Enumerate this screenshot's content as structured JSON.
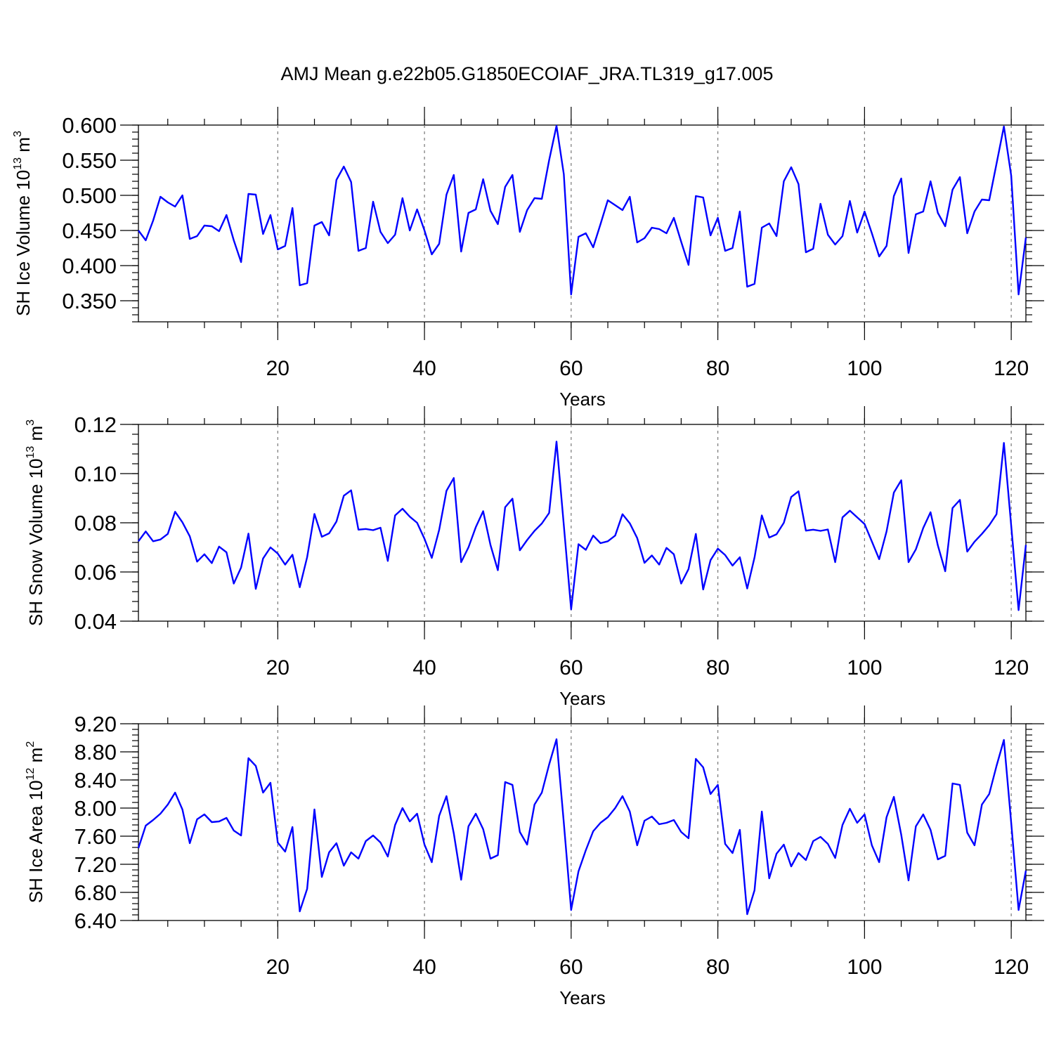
{
  "title": "AMJ Mean g.e22b05.G1850ECOIAF_JRA.TL319_g17.005",
  "series_color": "#0000ff",
  "chart_data": [
    {
      "type": "line",
      "title": "AMJ Mean g.e22b05.G1850ECOIAF_JRA.TL319_g17.005",
      "xlabel": "Years",
      "ylabel_main": "SH Ice Volume 10",
      "ylabel_sup": "13",
      "ylabel_unit": " m",
      "ylabel_unit_sup": "3",
      "xlim": [
        1,
        122
      ],
      "ylim": [
        0.32,
        0.6
      ],
      "xticks": [
        20,
        40,
        60,
        80,
        100,
        120
      ],
      "xtick_labels": [
        "20",
        "40",
        "60",
        "80",
        "100",
        "120"
      ],
      "yticks": [
        0.35,
        0.4,
        0.45,
        0.5,
        0.55,
        0.6
      ],
      "ytick_labels": [
        "0.350",
        "0.400",
        "0.450",
        "0.500",
        "0.550",
        "0.600"
      ],
      "grid": "vertical dashed at major x ticks",
      "x_start": 1,
      "values": [
        0.45,
        0.436,
        0.464,
        0.498,
        0.49,
        0.484,
        0.5,
        0.438,
        0.442,
        0.457,
        0.456,
        0.449,
        0.472,
        0.436,
        0.405,
        0.502,
        0.501,
        0.445,
        0.472,
        0.423,
        0.428,
        0.482,
        0.372,
        0.375,
        0.457,
        0.462,
        0.443,
        0.522,
        0.541,
        0.519,
        0.421,
        0.425,
        0.491,
        0.448,
        0.432,
        0.444,
        0.496,
        0.45,
        0.48,
        0.45,
        0.416,
        0.431,
        0.501,
        0.529,
        0.42,
        0.475,
        0.48,
        0.523,
        0.478,
        0.459,
        0.512,
        0.529,
        0.448,
        0.479,
        0.496,
        0.495,
        0.55,
        0.599,
        0.53,
        0.359,
        0.441,
        0.446,
        0.426,
        0.459,
        0.493,
        0.486,
        0.479,
        0.498,
        0.433,
        0.439,
        0.454,
        0.452,
        0.446,
        0.468,
        0.434,
        0.401,
        0.499,
        0.497,
        0.443,
        0.468,
        0.421,
        0.425,
        0.477,
        0.37,
        0.374,
        0.454,
        0.46,
        0.442,
        0.52,
        0.54,
        0.516,
        0.419,
        0.424,
        0.488,
        0.444,
        0.43,
        0.442,
        0.492,
        0.447,
        0.477,
        0.446,
        0.413,
        0.428,
        0.499,
        0.524,
        0.418,
        0.473,
        0.477,
        0.52,
        0.475,
        0.456,
        0.508,
        0.526,
        0.446,
        0.477,
        0.494,
        0.493,
        0.545,
        0.598,
        0.528,
        0.359,
        0.44
      ]
    },
    {
      "type": "line",
      "xlabel": "Years",
      "ylabel_main": "SH Snow Volume 10",
      "ylabel_sup": "13",
      "ylabel_unit": " m",
      "ylabel_unit_sup": "3",
      "xlim": [
        1,
        122
      ],
      "ylim": [
        0.04,
        0.12
      ],
      "xticks": [
        20,
        40,
        60,
        80,
        100,
        120
      ],
      "xtick_labels": [
        "20",
        "40",
        "60",
        "80",
        "100",
        "120"
      ],
      "yticks": [
        0.04,
        0.06,
        0.08,
        0.1,
        0.12
      ],
      "ytick_labels": [
        "0.04",
        "0.06",
        "0.08",
        "0.10",
        "0.12"
      ],
      "grid": "vertical dashed at major x ticks",
      "x_start": 1,
      "values": [
        0.0725,
        0.0765,
        0.0725,
        0.0732,
        0.0755,
        0.0845,
        0.0802,
        0.0745,
        0.0642,
        0.0672,
        0.0636,
        0.0703,
        0.068,
        0.0553,
        0.0618,
        0.0756,
        0.0531,
        0.0655,
        0.07,
        0.0675,
        0.063,
        0.067,
        0.0538,
        0.066,
        0.0836,
        0.0743,
        0.0757,
        0.0805,
        0.091,
        0.0932,
        0.0772,
        0.0775,
        0.077,
        0.078,
        0.0645,
        0.083,
        0.0857,
        0.0825,
        0.08,
        0.0735,
        0.0657,
        0.0771,
        0.093,
        0.0982,
        0.064,
        0.07,
        0.0782,
        0.0847,
        0.071,
        0.0607,
        0.0863,
        0.0898,
        0.0688,
        0.073,
        0.0767,
        0.0797,
        0.084,
        0.113,
        0.079,
        0.0448,
        0.0713,
        0.069,
        0.0748,
        0.0717,
        0.0725,
        0.0748,
        0.0835,
        0.0798,
        0.0738,
        0.0637,
        0.0667,
        0.063,
        0.0698,
        0.0672,
        0.0553,
        0.0612,
        0.0755,
        0.0529,
        0.0648,
        0.0695,
        0.0669,
        0.0626,
        0.066,
        0.0533,
        0.0659,
        0.083,
        0.074,
        0.0753,
        0.08,
        0.0905,
        0.0928,
        0.0768,
        0.0772,
        0.0767,
        0.0773,
        0.064,
        0.0822,
        0.0849,
        0.0822,
        0.0795,
        0.0724,
        0.0652,
        0.0765,
        0.0923,
        0.0973,
        0.064,
        0.0692,
        0.0779,
        0.0843,
        0.0708,
        0.0603,
        0.086,
        0.0893,
        0.0683,
        0.0723,
        0.0755,
        0.079,
        0.0835,
        0.1125,
        0.0788,
        0.0445,
        0.071
      ]
    },
    {
      "type": "line",
      "xlabel": "Years",
      "ylabel_main": "SH Ice Area 10",
      "ylabel_sup": "12",
      "ylabel_unit": " m",
      "ylabel_unit_sup": "2",
      "xlim": [
        1,
        122
      ],
      "ylim": [
        6.4,
        9.2
      ],
      "xticks": [
        20,
        40,
        60,
        80,
        100,
        120
      ],
      "xtick_labels": [
        "20",
        "40",
        "60",
        "80",
        "100",
        "120"
      ],
      "yticks": [
        6.4,
        6.8,
        7.2,
        7.6,
        8.0,
        8.4,
        8.8,
        9.2
      ],
      "ytick_labels": [
        "6.40",
        "6.80",
        "7.20",
        "7.60",
        "8.00",
        "8.40",
        "8.80",
        "9.20"
      ],
      "grid": "vertical dashed at major x ticks",
      "x_start": 1,
      "values": [
        7.43,
        7.75,
        7.83,
        7.92,
        8.05,
        8.22,
        7.98,
        7.5,
        7.84,
        7.91,
        7.8,
        7.81,
        7.86,
        7.68,
        7.61,
        8.71,
        8.6,
        8.22,
        8.36,
        7.51,
        7.38,
        7.73,
        6.53,
        6.85,
        7.98,
        7.02,
        7.37,
        7.5,
        7.18,
        7.37,
        7.28,
        7.53,
        7.61,
        7.51,
        7.31,
        7.76,
        8.0,
        7.81,
        7.92,
        7.48,
        7.23,
        7.89,
        8.17,
        7.64,
        6.98,
        7.74,
        7.92,
        7.7,
        7.28,
        7.33,
        8.37,
        8.33,
        7.66,
        7.48,
        8.05,
        8.22,
        8.62,
        8.98,
        7.79,
        6.55,
        7.1,
        7.4,
        7.67,
        7.79,
        7.87,
        8.0,
        8.17,
        7.95,
        7.47,
        7.82,
        7.88,
        7.77,
        7.79,
        7.83,
        7.66,
        7.57,
        8.7,
        8.58,
        8.2,
        8.33,
        7.49,
        7.36,
        7.69,
        6.49,
        6.83,
        7.95,
        7.0,
        7.35,
        7.48,
        7.17,
        7.36,
        7.26,
        7.53,
        7.59,
        7.49,
        7.29,
        7.76,
        7.99,
        7.79,
        7.91,
        7.47,
        7.23,
        7.87,
        8.16,
        7.62,
        6.97,
        7.74,
        7.91,
        7.69,
        7.27,
        7.32,
        8.35,
        8.33,
        7.65,
        7.47,
        8.05,
        8.2,
        8.6,
        8.97,
        7.79,
        6.55,
        7.11
      ]
    }
  ]
}
